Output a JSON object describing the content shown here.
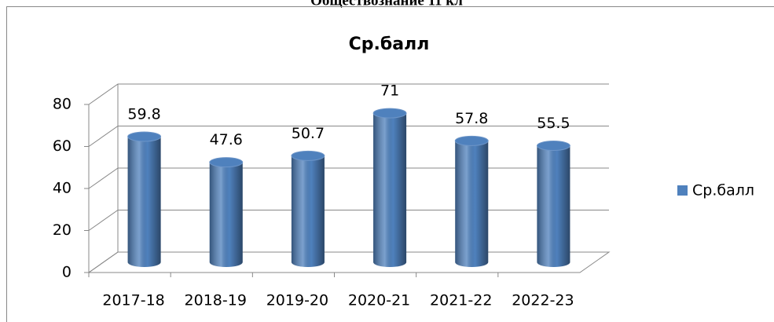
{
  "chart_data": {
    "type": "bar3d",
    "heading": "Обществознание 11 кл",
    "title": "Ср.балл",
    "categories": [
      "2017-18",
      "2018-19",
      "2019-20",
      "2020-21",
      "2021-22",
      "2022-23"
    ],
    "series": [
      {
        "name": "Ср.балл",
        "color": "#4f81bd",
        "values": [
          59.8,
          47.6,
          50.7,
          71,
          57.8,
          55.5
        ]
      }
    ],
    "ylim": [
      0,
      80
    ],
    "yticks": [
      0,
      20,
      40,
      60,
      80
    ],
    "grid": true,
    "legend": "right"
  }
}
